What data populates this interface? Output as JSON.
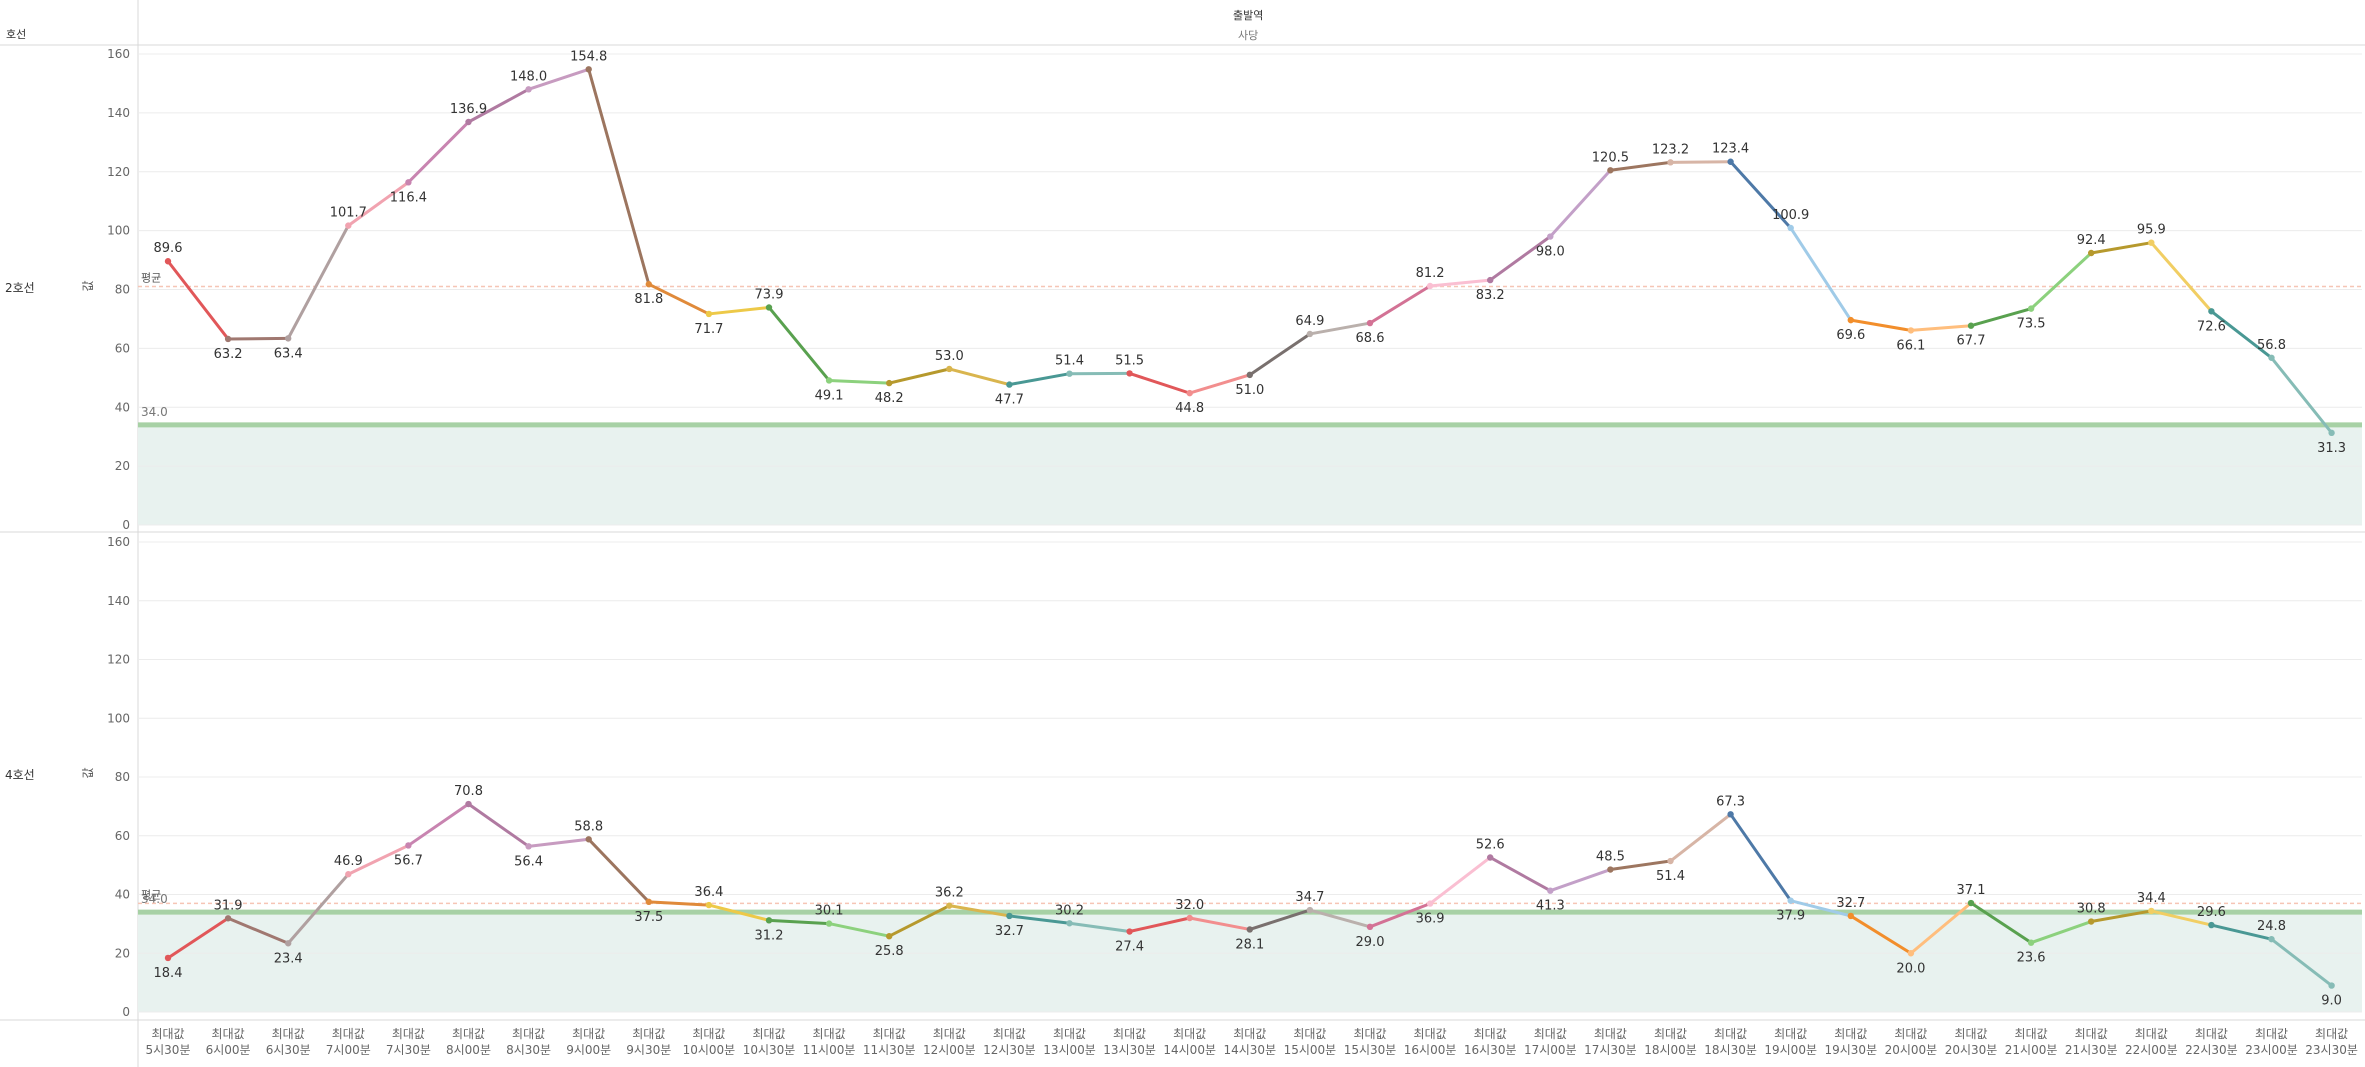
{
  "header": {
    "row_field": "호선",
    "column_field": "출발역",
    "column_value": "사당"
  },
  "axis": {
    "ticks": [
      "0",
      "20",
      "40",
      "60",
      "80",
      "100",
      "120",
      "140",
      "160"
    ],
    "ylabel": "값",
    "x_top": "최대값",
    "x_times": [
      "5시30분",
      "6시00분",
      "6시30분",
      "7시00분",
      "7시30분",
      "8시00분",
      "8시30분",
      "9시00분",
      "9시30분",
      "10시00분",
      "10시30분",
      "11시00분",
      "11시30분",
      "12시00분",
      "12시30분",
      "13시00분",
      "13시30분",
      "14시00분",
      "14시30분",
      "15시00분",
      "15시30분",
      "16시00분",
      "16시30분",
      "17시00분",
      "17시30분",
      "18시00분",
      "18시30분",
      "19시00분",
      "19시30분",
      "20시00분",
      "20시30분",
      "21시00분",
      "21시30분",
      "22시00분",
      "22시30분",
      "23시00분",
      "23시30분"
    ]
  },
  "chart_data": [
    {
      "type": "line",
      "panel": "2호선",
      "x": [
        "5시30분",
        "6시00분",
        "6시30분",
        "7시00분",
        "7시30분",
        "8시00분",
        "8시30분",
        "9시00분",
        "9시30분",
        "10시00분",
        "10시30분",
        "11시00분",
        "11시30분",
        "12시00분",
        "12시30분",
        "13시00분",
        "13시30분",
        "14시00분",
        "14시30분",
        "15시00분",
        "15시30분",
        "16시00분",
        "16시30분",
        "17시00분",
        "17시30분",
        "18시00분",
        "18시30분",
        "19시00분",
        "19시30분",
        "20시00분",
        "20시30분",
        "21시00분",
        "21시30분",
        "22시00분",
        "22시30분",
        "23시00분",
        "23시30분"
      ],
      "values": [
        89.6,
        63.2,
        63.4,
        101.7,
        116.4,
        136.9,
        148.0,
        154.8,
        81.8,
        71.7,
        73.9,
        49.1,
        48.2,
        53.0,
        47.7,
        51.4,
        51.5,
        44.8,
        51.0,
        64.9,
        68.6,
        81.2,
        83.2,
        98.0,
        120.5,
        123.2,
        123.4,
        100.9,
        69.6,
        66.1,
        67.7,
        73.5,
        92.4,
        95.9,
        72.6,
        56.8,
        31.3
      ],
      "labels": [
        "89.6",
        "63.2",
        "63.4",
        "101.7",
        "116.4",
        "136.9",
        "148.0",
        "154.8",
        "81.8",
        "71.7",
        "73.9",
        "49.1",
        "48.2",
        "53.0",
        "47.7",
        "51.4",
        "51.5",
        "44.8",
        "51.0",
        "64.9",
        "68.6",
        "81.2",
        "83.2",
        "98.0",
        "120.5",
        "123.2",
        "123.4",
        "100.9",
        "69.6",
        "66.1",
        "67.7",
        "73.5",
        "92.4",
        "95.9",
        "72.6",
        "56.8",
        "31.3"
      ],
      "ylim": [
        0,
        160
      ],
      "average_label": "평균",
      "average_value": 81,
      "reference_value": 34.0,
      "reference_label": "34.0",
      "grid": true
    },
    {
      "type": "line",
      "panel": "4호선",
      "x": [
        "5시30분",
        "6시00분",
        "6시30분",
        "7시00분",
        "7시30분",
        "8시00분",
        "8시30분",
        "9시00분",
        "9시30분",
        "10시00분",
        "10시30분",
        "11시00분",
        "11시30분",
        "12시00분",
        "12시30분",
        "13시00분",
        "13시30분",
        "14시00분",
        "14시30분",
        "15시00분",
        "15시30분",
        "16시00분",
        "16시30분",
        "17시00분",
        "17시30분",
        "18시00분",
        "18시30분",
        "19시00분",
        "19시30분",
        "20시00분",
        "20시30분",
        "21시00분",
        "21시30분",
        "22시00분",
        "22시30분",
        "23시00분",
        "23시30분"
      ],
      "values": [
        18.4,
        31.9,
        23.4,
        46.9,
        56.7,
        70.8,
        56.4,
        58.8,
        37.5,
        36.4,
        31.2,
        30.1,
        25.8,
        36.2,
        32.7,
        30.2,
        27.4,
        32.0,
        28.1,
        34.7,
        29.0,
        36.9,
        52.6,
        41.3,
        48.5,
        51.4,
        67.3,
        37.9,
        32.7,
        20.0,
        37.1,
        23.6,
        30.8,
        34.4,
        29.6,
        24.8,
        9.0
      ],
      "labels": [
        "18.4",
        "31.9",
        "23.4",
        "46.9",
        "56.7",
        "70.8",
        "56.4",
        "58.8",
        "37.5",
        "36.4",
        "31.2",
        "30.1",
        "25.8",
        "36.2",
        "32.7",
        "30.2",
        "27.4",
        "32.0",
        "28.1",
        "34.7",
        "29.0",
        "36.9",
        "52.6",
        "41.3",
        "48.5",
        "51.4",
        "67.3",
        "37.9",
        "32.7",
        "20.0",
        "37.1",
        "23.6",
        "30.8",
        "34.4",
        "29.6",
        "24.8",
        "9.0"
      ],
      "ylim": [
        0,
        160
      ],
      "average_label": "평균",
      "average_value": 37,
      "reference_value": 34.0,
      "reference_label": "34.0",
      "grid": true
    }
  ],
  "colors": {
    "segments": [
      "#e15759",
      "#a07870",
      "#b0a0a0",
      "#f1a3b0",
      "#c884b0",
      "#b07aa1",
      "#c79bc0",
      "#9c755f",
      "#e08a3a",
      "#edc948",
      "#59a14f",
      "#8cd17d",
      "#b6992d",
      "#d9b54e",
      "#499894",
      "#86bcb6",
      "#e15759",
      "#f28e8e",
      "#79706e",
      "#bab0ac",
      "#d37295",
      "#fabfd2",
      "#b07aa1",
      "#c3a0c8",
      "#9d7660",
      "#d7b5a6",
      "#4e79a7",
      "#a0cbe8",
      "#f28e2b",
      "#ffbe7d",
      "#59a14f",
      "#8cd17d",
      "#b6992d",
      "#f1ce63",
      "#499894",
      "#86bcb6"
    ],
    "reference_line": "#a7d1a5",
    "reference_band": "#e8f2ef",
    "average_line": "#f6c5b5",
    "grid": "#ececec"
  }
}
